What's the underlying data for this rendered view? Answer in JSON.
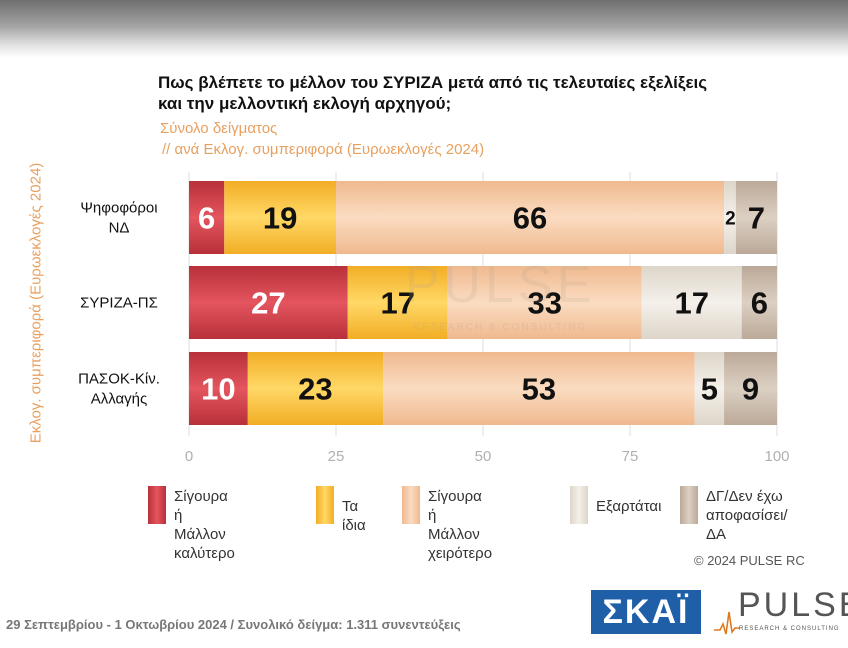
{
  "header": {
    "title": "Πως βλέπετε το μέλλον του ΣΥΡΙΖΑ μετά από τις τελευταίες εξελίξεις και την μελλοντική εκλογή αρχηγού;",
    "subtitle_line1": "Σύνολο δείγματος",
    "subtitle_line2": "// ανά Εκλογ. συμπεριφορά (Ευρωεκλογές 2024)"
  },
  "y_axis_title": "Εκλογ. συμπεριφορά (Ευρωεκλογές 2024)",
  "colors": {
    "better": "#d0404b",
    "same": "#f9c33d",
    "worse": "#f4c7a1",
    "depends": "#eae4da",
    "dk": "#cfc1b2",
    "value_dark": "#111111",
    "value_light": "#ffffff"
  },
  "chart_data": {
    "type": "bar",
    "orientation": "horizontal",
    "stacked": true,
    "categories": [
      "Ψηφοφόροι\nΝΔ",
      "ΣΥΡΙΖΑ-ΠΣ",
      "ΠΑΣΟΚ-Κίν.\nΑλλαγής"
    ],
    "series": [
      {
        "name": "Σίγουρα ή Μάλλον καλύτερο",
        "values": [
          6,
          27,
          10
        ]
      },
      {
        "name": "Τα ίδια",
        "values": [
          19,
          17,
          23
        ]
      },
      {
        "name": "Σίγουρα ή Μάλλον χειρότερο",
        "values": [
          66,
          33,
          53
        ]
      },
      {
        "name": "Εξαρτάται",
        "values": [
          2,
          17,
          5
        ]
      },
      {
        "name": "ΔΓ/Δεν έχω αποφασίσει/ΔΑ",
        "values": [
          7,
          6,
          9
        ]
      }
    ],
    "xlim": [
      0,
      100
    ],
    "xticks": [
      0,
      25,
      50,
      75,
      100
    ],
    "legend_position": "bottom",
    "grid": false
  },
  "legend": [
    {
      "label": "Σίγουρα ή Μάλλον\nκαλύτερο"
    },
    {
      "label": "Τα ίδια"
    },
    {
      "label": "Σίγουρα ή Μάλλον\nχειρότερο"
    },
    {
      "label": "Εξαρτάται"
    },
    {
      "label": "ΔΓ/Δεν έχω\nαποφασίσει/ΔΑ"
    }
  ],
  "copyright": "© 2024 PULSE RC",
  "footer": "29 Σεπτεμβρίου - 1 Οκτωβρίου 2024  /  Συνολικό δείγμα:  1.311 συνεντεύξεις",
  "logos": {
    "skai": "ΣΚΑΪ",
    "pulse": "PULSE",
    "pulse_tagline": "RESEARCH & CONSULTING"
  }
}
